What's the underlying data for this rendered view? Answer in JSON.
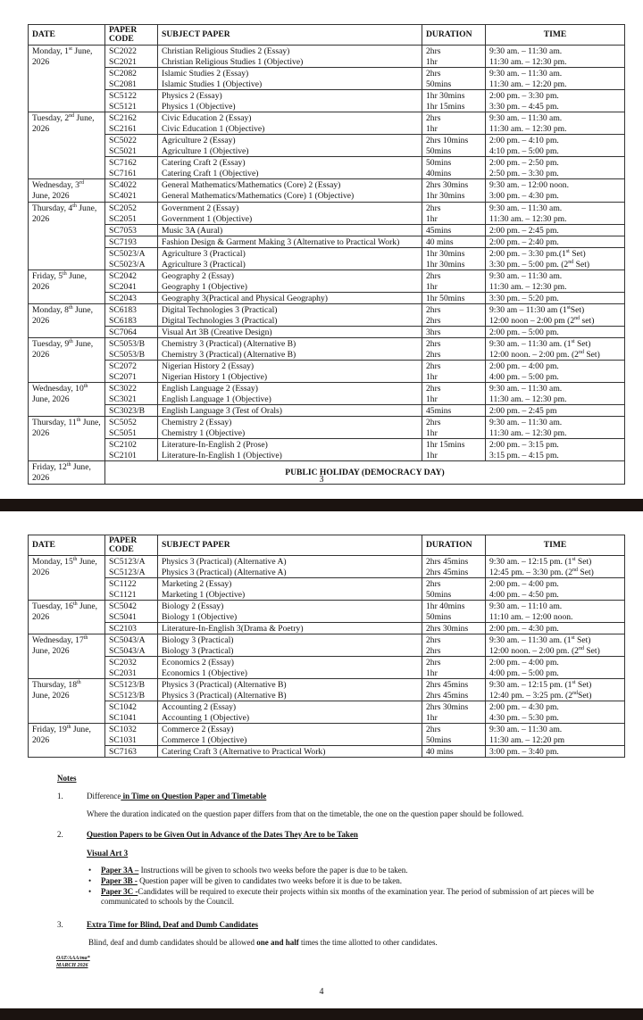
{
  "headers": {
    "date": "DATE",
    "code": "PAPER CODE",
    "subject": "SUBJECT PAPER",
    "duration": "DURATION",
    "time": "TIME"
  },
  "page1": {
    "page_number": "3",
    "days": [
      {
        "date": "Monday, 1st June, 2026",
        "groups": [
          [
            [
              "SC2022",
              "Christian Religious Studies 2 (Essay)",
              "2hrs",
              "9:30 am. – 11:30 am."
            ],
            [
              "SC2021",
              "Christian Religious Studies 1 (Objective)",
              "1hr",
              "11:30 am. – 12:30 pm."
            ]
          ],
          [
            [
              "SC2082",
              "Islamic Studies 2 (Essay)",
              "2hrs",
              "9:30 am. – 11:30 am."
            ],
            [
              "SC2081",
              "Islamic Studies 1 (Objective)",
              "50mins",
              "11:30 am. – 12:20 pm."
            ]
          ],
          [
            [
              "SC5122",
              "Physics 2 (Essay)",
              "1hr 30mins",
              "2:00 pm. – 3:30 pm."
            ],
            [
              "SC5121",
              "Physics 1 (Objective)",
              "1hr 15mins",
              "3:30 pm. – 4:45 pm."
            ]
          ]
        ]
      },
      {
        "date": "Tuesday, 2nd June, 2026",
        "groups": [
          [
            [
              "SC2162",
              "Civic Education 2 (Essay)",
              "2hrs",
              "9:30 am. – 11:30 am."
            ],
            [
              "SC2161",
              "Civic Education 1 (Objective)",
              "1hr",
              "11:30 am. – 12:30 pm."
            ]
          ],
          [
            [
              "SC5022",
              "Agriculture 2 (Essay)",
              "2hrs 10mins",
              "2:00 pm. – 4:10 pm."
            ],
            [
              "SC5021",
              "Agriculture 1 (Objective)",
              "50mins",
              "4:10 pm. – 5:00 pm."
            ]
          ],
          [
            [
              "SC7162",
              "Catering Craft 2 (Essay)",
              "50mins",
              "2:00 pm. – 2:50 pm."
            ],
            [
              "SC7161",
              "Catering Craft 1 (Objective)",
              "40mins",
              "2:50 pm. – 3:30 pm."
            ]
          ]
        ]
      },
      {
        "date": "Wednesday, 3rd June, 2026",
        "groups": [
          [
            [
              "SC4022",
              "General Mathematics/Mathematics (Core) 2 (Essay)",
              "2hrs 30mins",
              "9:30 am. – 12:00 noon."
            ],
            [
              "SC4021",
              "General Mathematics/Mathematics (Core) 1 (Objective)",
              "1hr 30mins",
              "3:00 pm. – 4:30 pm."
            ]
          ]
        ]
      },
      {
        "date": "Thursday, 4th June, 2026",
        "groups": [
          [
            [
              "SC2052",
              "Government 2 (Essay)",
              "2hrs",
              "9:30 am. – 11:30 am."
            ],
            [
              "SC2051",
              "Government 1 (Objective)",
              "1hr",
              "11:30 am. – 12:30 pm."
            ]
          ],
          [
            [
              "SC7053",
              "Music 3A (Aural)",
              "45mins",
              "2:00 pm. – 2:45 pm."
            ]
          ],
          [
            [
              "SC7193",
              "Fashion Design & Garment Making 3 (Alternative to Practical Work)",
              "40 mins",
              "2:00 pm. – 2:40 pm."
            ]
          ],
          [
            [
              "SC5023/A",
              "Agriculture 3 (Practical)",
              "1hr 30mins",
              "2:00 pm. – 3:30 pm.(1st Set)"
            ],
            [
              "SC5023/A",
              "Agriculture 3 (Practical)",
              "1hr 30mins",
              "3:30 pm. – 5:00 pm. (2nd Set)"
            ]
          ]
        ]
      },
      {
        "date": "Friday, 5th June, 2026",
        "groups": [
          [
            [
              "SC2042",
              "Geography 2 (Essay)",
              "2hrs",
              "9:30 am. – 11:30 am."
            ],
            [
              "SC2041",
              "Geography 1 (Objective)",
              "1hr",
              "11:30 am. – 12:30 pm."
            ]
          ],
          [
            [
              "SC2043",
              "Geography 3(Practical and Physical Geography)",
              "1hr 50mins",
              "3:30 pm. – 5:20 pm."
            ]
          ]
        ]
      },
      {
        "date": "Monday, 8th June, 2026",
        "groups": [
          [
            [
              "SC6183",
              "Digital Technologies 3 (Practical)",
              "2hrs",
              "9:30 am – 11:30 am (1stSet)"
            ],
            [
              "SC6183",
              "Digital Technologies 3 (Practical)",
              "2hrs",
              "12:00 noon – 2:00 pm (2nd set)"
            ]
          ],
          [
            [
              "SC7064",
              "Visual Art 3B (Creative Design)",
              "3hrs",
              "2:00 pm. – 5:00 pm."
            ]
          ]
        ]
      },
      {
        "date": "Tuesday, 9th June, 2026",
        "groups": [
          [
            [
              "SC5053/B",
              "Chemistry 3 (Practical) (Alternative B)",
              "2hrs",
              "9:30 am. – 11:30 am. (1st Set)"
            ],
            [
              "SC5053/B",
              "Chemistry 3 (Practical) (Alternative B)",
              "2hrs",
              "12:00 noon. – 2:00 pm. (2nd Set)"
            ]
          ],
          [
            [
              "SC2072",
              "Nigerian History 2 (Essay)",
              "2hrs",
              "2:00 pm. – 4:00 pm."
            ],
            [
              "SC2071",
              "Nigerian History 1 (Objective)",
              "1hr",
              "4:00 pm. – 5:00 pm."
            ]
          ]
        ]
      },
      {
        "date": "Wednesday, 10th June, 2026",
        "groups": [
          [
            [
              "SC3022",
              "English Language 2 (Essay)",
              "2hrs",
              "9:30 am. – 11:30 am."
            ],
            [
              "SC3021",
              "English Language 1 (Objective)",
              "1hr",
              "11:30 am. – 12:30 pm."
            ]
          ],
          [
            [
              "SC3023/B",
              "English Language 3 (Test of Orals)",
              "45mins",
              "2:00 pm. – 2:45 pm"
            ]
          ]
        ]
      },
      {
        "date": "Thursday, 11th June, 2026",
        "groups": [
          [
            [
              "SC5052",
              "Chemistry 2 (Essay)",
              "2hrs",
              "9:30 am. – 11:30 am."
            ],
            [
              "SC5051",
              "Chemistry 1 (Objective)",
              "1hr",
              "11:30 am. – 12:30 pm."
            ]
          ],
          [
            [
              "SC2102",
              "Literature-In-English 2 (Prose)",
              "1hr 15mins",
              "2:00 pm. – 3:15 pm."
            ],
            [
              "SC2101",
              "Literature-In-English 1 (Objective)",
              "1hr",
              "3:15 pm. – 4:15 pm."
            ]
          ]
        ]
      },
      {
        "date": "Friday, 12th June, 2026",
        "holiday": "PUBLIC HOLIDAY (DEMOCRACY DAY)"
      }
    ]
  },
  "page2": {
    "page_number": "4",
    "days": [
      {
        "date": "Monday, 15th June, 2026",
        "groups": [
          [
            [
              "SC5123/A",
              "Physics 3 (Practical) (Alternative A)",
              "2hrs 45mins",
              "9:30 am. – 12:15 pm. (1st Set)"
            ],
            [
              "SC5123/A",
              "Physics 3 (Practical) (Alternative A)",
              "2hrs 45mins",
              "12:45 pm. – 3:30 pm. (2nd Set)"
            ]
          ],
          [
            [
              "SC1122",
              "Marketing 2 (Essay)",
              "2hrs",
              "2:00 pm. – 4:00 pm."
            ],
            [
              "SC1121",
              "Marketing 1 (Objective)",
              "50mins",
              "4:00 pm. – 4:50 pm."
            ]
          ]
        ]
      },
      {
        "date": "Tuesday, 16th June, 2026",
        "groups": [
          [
            [
              "SC5042",
              "Biology 2 (Essay)",
              "1hr 40mins",
              "9:30 am. – 11:10 am."
            ],
            [
              "SC5041",
              "Biology 1 (Objective)",
              "50mins",
              "11:10 am. – 12:00 noon."
            ]
          ],
          [
            [
              "SC2103",
              "Literature-In-English 3(Drama & Poetry)",
              "2hrs 30mins",
              "2:00 pm. – 4:30 pm."
            ]
          ]
        ]
      },
      {
        "date": "Wednesday, 17th June, 2026",
        "groups": [
          [
            [
              "SC5043/A",
              "Biology 3 (Practical)",
              "2hrs",
              "9:30 am. – 11:30 am. (1st Set)"
            ],
            [
              "SC5043/A",
              "Biology 3 (Practical)",
              "2hrs",
              "12:00 noon. – 2:00 pm. (2nd Set)"
            ]
          ],
          [
            [
              "SC2032",
              "Economics 2 (Essay)",
              "2hrs",
              "2:00 pm. – 4:00 pm."
            ],
            [
              "SC2031",
              "Economics 1 (Objective)",
              "1hr",
              "4:00 pm. – 5:00 pm."
            ]
          ]
        ]
      },
      {
        "date": "Thursday, 18th June, 2026",
        "groups": [
          [
            [
              "SC5123/B",
              "Physics 3 (Practical) (Alternative B)",
              "2hrs 45mins",
              "9:30 am. – 12:15 pm. (1st Set)"
            ],
            [
              "SC5123/B",
              "Physics 3 (Practical) (Alternative B)",
              "2hrs 45mins",
              "12:40 pm. – 3:25 pm. (2ndSet)"
            ]
          ],
          [
            [
              "SC1042",
              "Accounting 2 (Essay)",
              "2hrs 30mins",
              "2:00 pm. – 4:30 pm."
            ],
            [
              "SC1041",
              "Accounting 1 (Objective)",
              "1hr",
              "4:30 pm. – 5:30 pm."
            ]
          ]
        ]
      },
      {
        "date": "Friday, 19th June, 2026",
        "groups": [
          [
            [
              "SC1032",
              "Commerce 2 (Essay)",
              "2hrs",
              "9:30 am. – 11:30 am."
            ],
            [
              "SC1031",
              "Commerce 1 (Objective)",
              "50mins",
              "11:30 am. – 12:20 pm"
            ]
          ],
          [
            [
              "SC7163",
              "Catering Craft 3 (Alternative to Practical Work)",
              "40 mins",
              "3:00 pm. – 3:40 pm."
            ]
          ]
        ]
      }
    ],
    "notes": {
      "title": "Notes",
      "n1_num": "1.",
      "n1_pre": "Difference",
      "n1_title": " in Time on Question Paper and Timetable",
      "n1_text": "Where the duration indicated on the question paper differs from that on the timetable, the one on the question paper should be followed.",
      "n2_num": "2.",
      "n2_title": "Question Papers to be Given Out in Advance of the Dates They Are to be Taken",
      "n2_sub": "Visual Art 3",
      "bullets": [
        {
          "label": "Paper 3A –",
          "text": " Instructions will be given to schools two weeks before the paper is due to be taken."
        },
        {
          "label": "Paper 3B -",
          "text": " Question paper will be given to candidates two weeks before it is due to be taken."
        },
        {
          "label": "Paper 3C -",
          "text": "Candidates will be required to execute their projects within six months of the examination year. The period of submission of art pieces will be communicated to schools by the Council."
        }
      ],
      "n3_num": "3.",
      "n3_title": "Extra Time for Blind, Deaf and Dumb Candidates",
      "n3_pre": "Blind, deaf and dumb candidates should be allowed ",
      "n3_bold": "one and half",
      "n3_post": " times the time allotted to other candidates.",
      "ref1": "OAT/AAA/ma*",
      "ref2": "MARCH 2026"
    }
  }
}
